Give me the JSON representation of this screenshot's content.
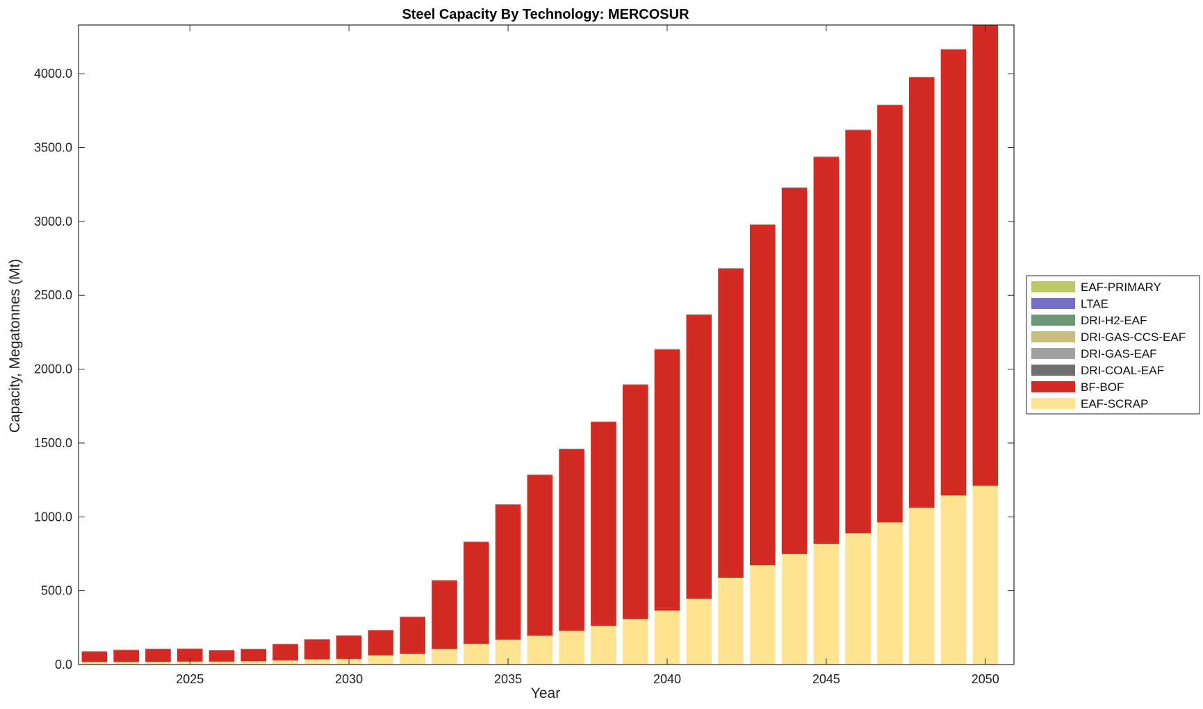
{
  "chart_data": {
    "type": "bar",
    "stacked": true,
    "title": "Steel Capacity By Technology: MERCOSUR",
    "xlabel": "Year",
    "ylabel": "Capacity, Megatonnes (Mt)",
    "x": [
      2022,
      2023,
      2024,
      2025,
      2026,
      2027,
      2028,
      2029,
      2030,
      2031,
      2032,
      2033,
      2034,
      2035,
      2036,
      2037,
      2038,
      2039,
      2040,
      2041,
      2042,
      2043,
      2044,
      2045,
      2046,
      2047,
      2048,
      2049,
      2050
    ],
    "xlim": [
      2021.5,
      2050.9
    ],
    "ylim": [
      0,
      4330
    ],
    "xticks": [
      "2025",
      "2030",
      "2035",
      "2040",
      "2045",
      "2050"
    ],
    "yticks": [
      "0.0",
      "500.0",
      "1000.0",
      "1500.0",
      "2000.0",
      "2500.0",
      "3000.0",
      "3500.0",
      "4000.0"
    ],
    "grid": false,
    "legend_position": "outside-right",
    "series": [
      {
        "name": "EAF-SCRAP",
        "color": "#FEE391",
        "values": [
          18,
          18,
          19,
          20,
          20,
          22,
          28,
          35,
          38,
          62,
          72,
          105,
          140,
          168,
          195,
          228,
          262,
          308,
          365,
          445,
          588,
          672,
          748,
          818,
          888,
          962,
          1062,
          1145,
          1210
        ]
      },
      {
        "name": "BF-BOF",
        "color": "#D32A23",
        "values": [
          69,
          80,
          86,
          86,
          76,
          82,
          110,
          135,
          157,
          170,
          250,
          464,
          690,
          915,
          1088,
          1230,
          1380,
          1586,
          1768,
          1923,
          2093,
          2305,
          2479,
          2618,
          2730,
          2825,
          2913,
          3018,
          3118
        ]
      },
      {
        "name": "DRI-COAL-EAF",
        "color": "#707070",
        "values": [
          0,
          0,
          0,
          0,
          0,
          0,
          0,
          0,
          0,
          0,
          0,
          0,
          0,
          0,
          0,
          0,
          0,
          0,
          0,
          0,
          0,
          0,
          0,
          0,
          0,
          0,
          0,
          0,
          0
        ]
      },
      {
        "name": "DRI-GAS-EAF",
        "color": "#A0A0A0",
        "values": [
          3,
          3,
          3,
          3,
          3,
          3,
          3,
          3,
          3,
          3,
          3,
          3,
          3,
          3,
          4,
          4,
          4,
          4,
          4,
          4,
          4,
          4,
          4,
          4,
          4,
          4,
          4,
          4,
          4
        ]
      },
      {
        "name": "DRI-GAS-CCS-EAF",
        "color": "#C8BF7E",
        "values": [
          0,
          0,
          0,
          0,
          0,
          0,
          0,
          0,
          0,
          0,
          0,
          0,
          0,
          0,
          0,
          0,
          0,
          0,
          0,
          0,
          0,
          0,
          0,
          0,
          0,
          0,
          0,
          0,
          0
        ]
      },
      {
        "name": "DRI-H2-EAF",
        "color": "#6D9877",
        "values": [
          0,
          0,
          0,
          0,
          0,
          0,
          0,
          0,
          0,
          0,
          0,
          0,
          0,
          0,
          0,
          0,
          0,
          0,
          0,
          0,
          0,
          0,
          0,
          0,
          0,
          0,
          0,
          0,
          0
        ]
      },
      {
        "name": "LTAE",
        "color": "#7570C5",
        "values": [
          0,
          0,
          0,
          0,
          0,
          0,
          0,
          0,
          0,
          0,
          0,
          0,
          0,
          0,
          0,
          0,
          0,
          0,
          0,
          0,
          0,
          0,
          0,
          0,
          0,
          0,
          0,
          0,
          0
        ]
      },
      {
        "name": "EAF-PRIMARY",
        "color": "#BCC86B",
        "values": [
          0,
          0,
          0,
          0,
          0,
          0,
          0,
          0,
          0,
          0,
          0,
          0,
          0,
          0,
          0,
          0,
          0,
          0,
          0,
          0,
          0,
          0,
          0,
          0,
          0,
          0,
          0,
          0,
          0
        ]
      }
    ]
  }
}
